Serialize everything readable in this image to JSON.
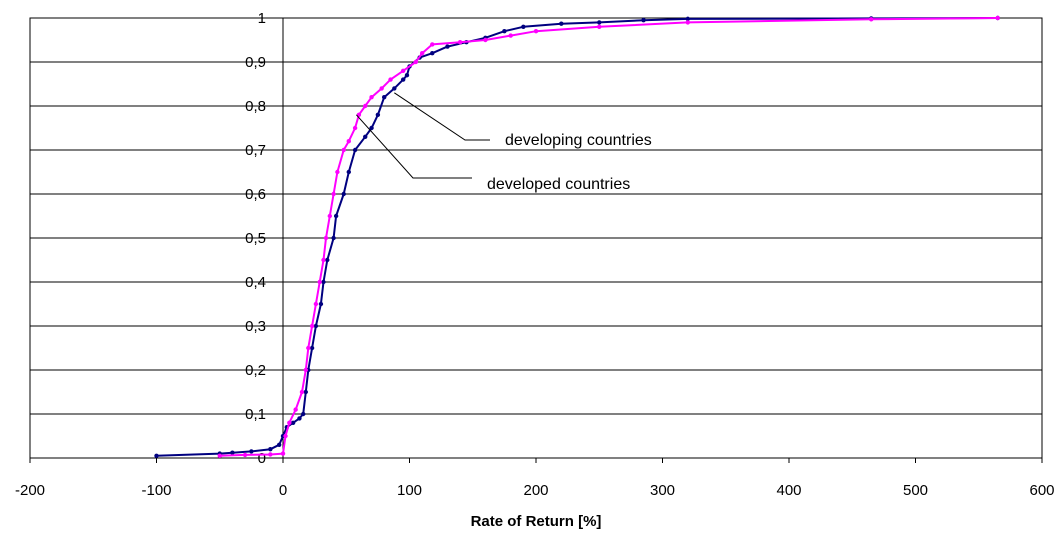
{
  "chart_data": {
    "type": "line",
    "title": "",
    "xlabel": "Rate of Return [%]",
    "ylabel": "",
    "xlim": [
      -200,
      600
    ],
    "ylim": [
      0,
      1
    ],
    "xticks": [
      -200,
      -100,
      0,
      100,
      200,
      300,
      400,
      500,
      600
    ],
    "xtick_labels": [
      "-200",
      "-100",
      "0",
      "100",
      "200",
      "300",
      "400",
      "500",
      "600"
    ],
    "yticks": [
      0,
      0.1,
      0.2,
      0.3,
      0.4,
      0.5,
      0.6,
      0.7,
      0.8,
      0.9,
      1
    ],
    "ytick_labels": [
      "0",
      "0,1",
      "0,2",
      "0,3",
      "0,4",
      "0,5",
      "0,6",
      "0,7",
      "0,8",
      "0,9",
      "1"
    ],
    "grid": "horizontal",
    "legend": "none",
    "series": [
      {
        "name": "developing countries",
        "color": "#000080",
        "points": [
          [
            -100,
            0.005
          ],
          [
            -50,
            0.01
          ],
          [
            -40,
            0.012
          ],
          [
            -25,
            0.015
          ],
          [
            -10,
            0.02
          ],
          [
            -3,
            0.03
          ],
          [
            0,
            0.05
          ],
          [
            3,
            0.07
          ],
          [
            8,
            0.08
          ],
          [
            13,
            0.09
          ],
          [
            16,
            0.1
          ],
          [
            18,
            0.15
          ],
          [
            20,
            0.2
          ],
          [
            23,
            0.25
          ],
          [
            26,
            0.3
          ],
          [
            30,
            0.35
          ],
          [
            32,
            0.4
          ],
          [
            35,
            0.45
          ],
          [
            40,
            0.5
          ],
          [
            42,
            0.55
          ],
          [
            48,
            0.6
          ],
          [
            52,
            0.65
          ],
          [
            57,
            0.7
          ],
          [
            65,
            0.73
          ],
          [
            70,
            0.75
          ],
          [
            75,
            0.78
          ],
          [
            80,
            0.82
          ],
          [
            88,
            0.84
          ],
          [
            95,
            0.86
          ],
          [
            98,
            0.87
          ],
          [
            100,
            0.89
          ],
          [
            108,
            0.91
          ],
          [
            118,
            0.92
          ],
          [
            130,
            0.935
          ],
          [
            145,
            0.945
          ],
          [
            160,
            0.955
          ],
          [
            175,
            0.97
          ],
          [
            190,
            0.98
          ],
          [
            220,
            0.987
          ],
          [
            250,
            0.99
          ],
          [
            285,
            0.995
          ],
          [
            320,
            0.998
          ],
          [
            465,
            0.999
          ],
          [
            565,
            1.0
          ]
        ]
      },
      {
        "name": "developed countries",
        "color": "#ff00ff",
        "points": [
          [
            -50,
            0.005
          ],
          [
            -30,
            0.007
          ],
          [
            -10,
            0.008
          ],
          [
            0,
            0.01
          ],
          [
            2,
            0.05
          ],
          [
            5,
            0.08
          ],
          [
            10,
            0.11
          ],
          [
            15,
            0.15
          ],
          [
            18,
            0.2
          ],
          [
            20,
            0.25
          ],
          [
            23,
            0.3
          ],
          [
            26,
            0.35
          ],
          [
            29,
            0.4
          ],
          [
            32,
            0.45
          ],
          [
            34,
            0.5
          ],
          [
            37,
            0.55
          ],
          [
            40,
            0.6
          ],
          [
            43,
            0.65
          ],
          [
            48,
            0.7
          ],
          [
            52,
            0.72
          ],
          [
            57,
            0.75
          ],
          [
            60,
            0.78
          ],
          [
            65,
            0.8
          ],
          [
            70,
            0.82
          ],
          [
            78,
            0.84
          ],
          [
            85,
            0.86
          ],
          [
            95,
            0.88
          ],
          [
            105,
            0.9
          ],
          [
            110,
            0.92
          ],
          [
            118,
            0.94
          ],
          [
            140,
            0.945
          ],
          [
            160,
            0.95
          ],
          [
            180,
            0.96
          ],
          [
            200,
            0.97
          ],
          [
            250,
            0.98
          ],
          [
            320,
            0.99
          ],
          [
            465,
            0.997
          ],
          [
            565,
            1.0
          ]
        ]
      }
    ],
    "annotations": [
      {
        "text": "developing countries",
        "series": "developing countries",
        "target": [
          88,
          0.83
        ]
      },
      {
        "text": "developed countries",
        "series": "developed countries",
        "target": [
          58,
          0.78
        ]
      }
    ]
  }
}
